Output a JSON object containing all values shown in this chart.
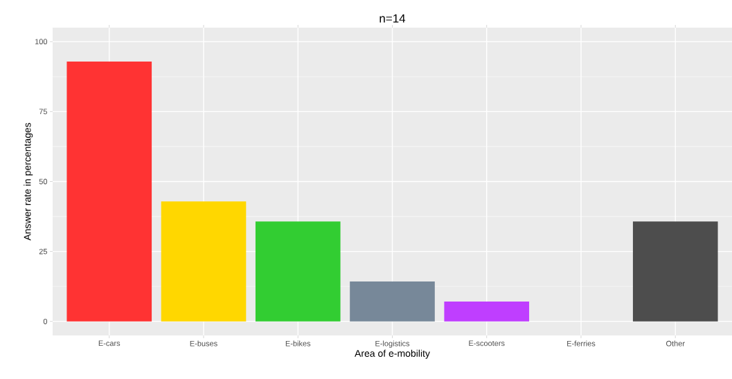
{
  "chart_data": {
    "type": "bar",
    "title": "n=14",
    "xlabel": "Area of e-mobility",
    "ylabel": "Answer rate in percentages",
    "categories": [
      "E-cars",
      "E-buses",
      "E-bikes",
      "E-logistics",
      "E-scooters",
      "E-ferries",
      "Other"
    ],
    "values": [
      92.9,
      42.9,
      35.7,
      14.3,
      7.1,
      0,
      35.7
    ],
    "colors": [
      "#ff3333",
      "#ffd700",
      "#32cd32",
      "#778899",
      "#bf3eff",
      "#1e90ff",
      "#4d4d4d"
    ],
    "ylim": [
      -5,
      105
    ],
    "yticks": [
      0,
      25,
      50,
      75,
      100
    ],
    "grid": true
  }
}
